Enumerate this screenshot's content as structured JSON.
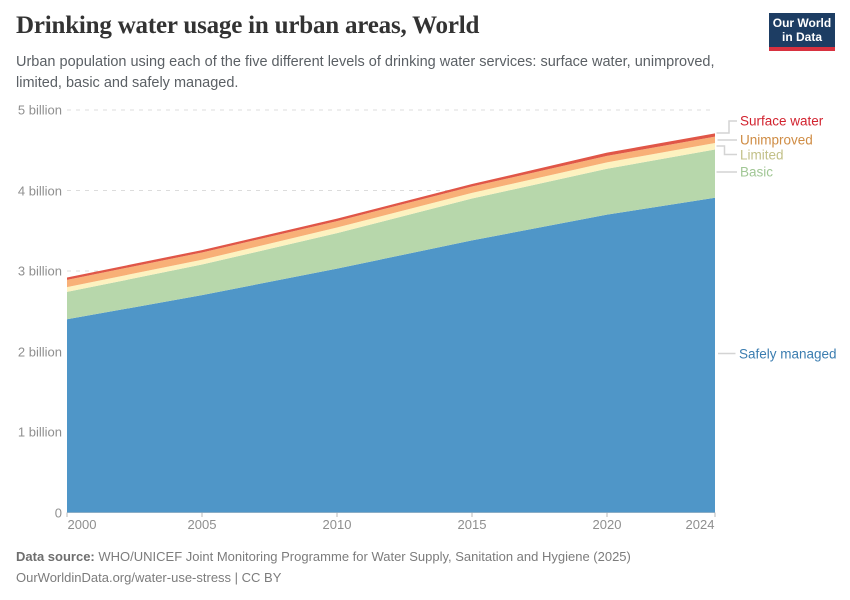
{
  "header": {
    "title": "Drinking water usage in urban areas, World",
    "subtitle": "Urban population using each of the five different levels of drinking water services: surface water, unimproved, limited, basic and safely managed.",
    "logo": {
      "line1": "Our World",
      "line2": "in Data",
      "bg_color": "#1d3d63",
      "bar_color": "#d8313f"
    }
  },
  "chart_data": {
    "type": "area",
    "stacked": true,
    "title": "Drinking water usage in urban areas, World",
    "unit": "billion people",
    "x": [
      2000,
      2005,
      2010,
      2015,
      2020,
      2024
    ],
    "x_tick_labels": [
      "2000",
      "2005",
      "2010",
      "2015",
      "2020",
      "2024"
    ],
    "y_tick_labels": [
      "0",
      "1 billion",
      "2 billion",
      "3 billion",
      "4 billion",
      "5 billion"
    ],
    "xlim": [
      2000,
      2024
    ],
    "ylim": [
      0,
      5
    ],
    "grid": "horizontal-dashed",
    "legend_position": "right-edge-labels",
    "series": [
      {
        "name": "Safely managed",
        "color": "#4f96c8",
        "label_color": "#3b7db0",
        "values": [
          2.4,
          2.7,
          3.03,
          3.38,
          3.7,
          3.91
        ]
      },
      {
        "name": "Basic",
        "color": "#b7d7ab",
        "label_color": "#a1c795",
        "values": [
          0.34,
          0.38,
          0.44,
          0.52,
          0.57,
          0.6
        ]
      },
      {
        "name": "Limited",
        "color": "#fdf2c0",
        "label_color": "#c2c088",
        "values": [
          0.06,
          0.06,
          0.07,
          0.07,
          0.08,
          0.08
        ]
      },
      {
        "name": "Unimproved",
        "color": "#f8b077",
        "label_color": "#cf8c44",
        "values": [
          0.09,
          0.09,
          0.08,
          0.08,
          0.08,
          0.08
        ]
      },
      {
        "name": "Surface water",
        "color": "#e05647",
        "label_color": "#d2232f",
        "values": [
          0.03,
          0.03,
          0.03,
          0.03,
          0.04,
          0.04
        ]
      }
    ]
  },
  "footer": {
    "source_label": "Data source:",
    "source_text": "WHO/UNICEF Joint Monitoring Programme for Water Supply, Sanitation and Hygiene (2025)",
    "citation": "OurWorldinData.org/water-use-stress | CC BY"
  }
}
